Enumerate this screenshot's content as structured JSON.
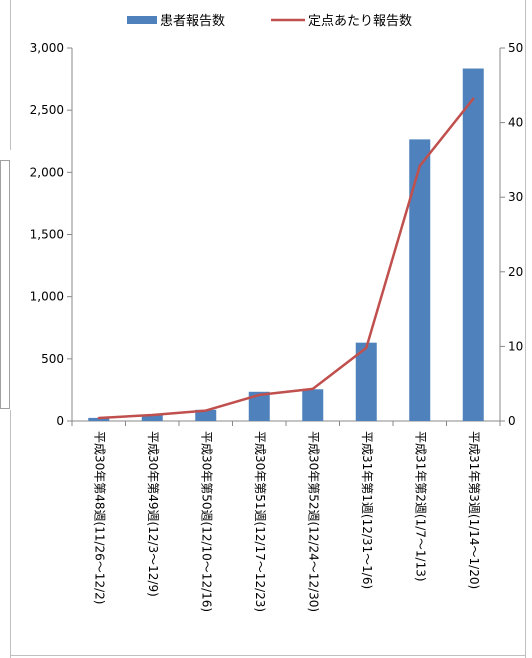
{
  "chart_data": {
    "type": "bar",
    "categories": [
      "平成30年第48週(11/26～12/2)",
      "平成30年第49週(12/3～12/9)",
      "平成30年第50週(12/10～12/16)",
      "平成30年第51週(12/17～12/23)",
      "平成30年第52週(12/24～12/30)",
      "平成31年第1週(12/31～1/6)",
      "平成31年第2週(1/7～1/13)",
      "平成31年第3週(1/14～1/20)"
    ],
    "series": [
      {
        "name": "患者報告数",
        "kind": "bar",
        "axis": "left",
        "color": "#4f81bd",
        "values": [
          25,
          50,
          90,
          235,
          255,
          630,
          2265,
          2835
        ]
      },
      {
        "name": "定点あたり報告数",
        "kind": "line",
        "axis": "right",
        "color": "#c0504d",
        "values": [
          0.4,
          0.8,
          1.4,
          3.5,
          4.3,
          9.8,
          34.2,
          43.2
        ]
      }
    ],
    "y_left": {
      "ticks": [
        "0",
        "500",
        "1,000",
        "1,500",
        "2,000",
        "2,500",
        "3,000"
      ],
      "ylim": [
        0,
        3000
      ]
    },
    "y_right": {
      "ticks": [
        "0",
        "10",
        "20",
        "30",
        "40",
        "50"
      ],
      "ylim": [
        0,
        50
      ]
    },
    "legend": {
      "position": "top"
    },
    "grid": false
  }
}
